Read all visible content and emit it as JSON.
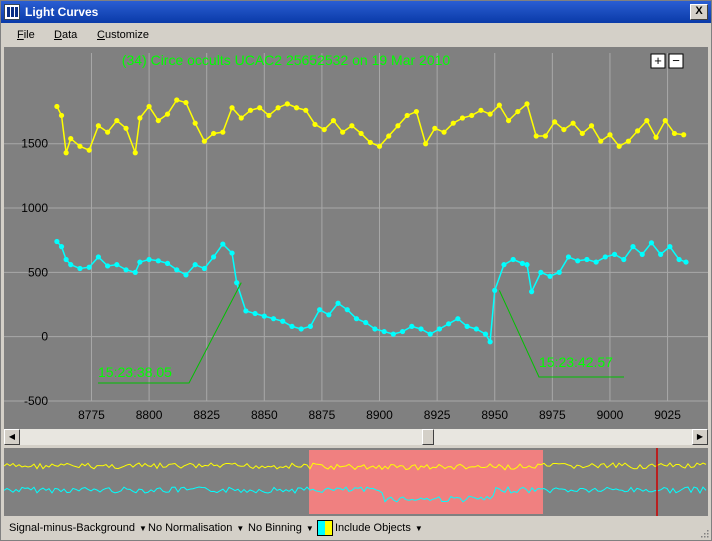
{
  "window": {
    "title": "Light Curves",
    "close_label": "X"
  },
  "menu": {
    "items": [
      {
        "mnemonic": "F",
        "rest": "ile"
      },
      {
        "mnemonic": "D",
        "rest": "ata"
      },
      {
        "mnemonic": "C",
        "rest": "ustomize"
      }
    ]
  },
  "chart": {
    "title": "(34) Circe occults UCAC2 25652532 on 19 Mar 2010",
    "zoom_in_label": "+",
    "zoom_out_label": "−",
    "annotations": [
      {
        "text": "15:23:38.05",
        "frame": 8840
      },
      {
        "text": "15:23:42.57",
        "frame": 8952
      }
    ],
    "colors": {
      "background": "#808080",
      "grid": "#a8a8a8",
      "series1": "#ffff00",
      "series2": "#00ffff",
      "annotation": "#00ff00"
    }
  },
  "chart_data": {
    "type": "line",
    "x_ticks": [
      8775,
      8800,
      8825,
      8850,
      8875,
      8900,
      8925,
      8950,
      8975,
      9000,
      9025
    ],
    "y_ticks": [
      1500,
      1000,
      500,
      0,
      -500
    ],
    "xlim": [
      8757,
      9033
    ],
    "ylim": [
      -500,
      2050
    ],
    "grid": true,
    "series": [
      {
        "color": "#ffff00",
        "values": [
          [
            8760,
            1790
          ],
          [
            8762,
            1720
          ],
          [
            8764,
            1430
          ],
          [
            8766,
            1540
          ],
          [
            8770,
            1480
          ],
          [
            8774,
            1450
          ],
          [
            8778,
            1640
          ],
          [
            8782,
            1590
          ],
          [
            8786,
            1680
          ],
          [
            8790,
            1620
          ],
          [
            8794,
            1430
          ],
          [
            8796,
            1700
          ],
          [
            8800,
            1790
          ],
          [
            8804,
            1680
          ],
          [
            8808,
            1730
          ],
          [
            8812,
            1840
          ],
          [
            8816,
            1820
          ],
          [
            8820,
            1660
          ],
          [
            8824,
            1520
          ],
          [
            8828,
            1580
          ],
          [
            8832,
            1590
          ],
          [
            8836,
            1780
          ],
          [
            8840,
            1700
          ],
          [
            8844,
            1760
          ],
          [
            8848,
            1780
          ],
          [
            8852,
            1720
          ],
          [
            8856,
            1780
          ],
          [
            8860,
            1810
          ],
          [
            8864,
            1780
          ],
          [
            8868,
            1760
          ],
          [
            8872,
            1650
          ],
          [
            8876,
            1610
          ],
          [
            8880,
            1680
          ],
          [
            8884,
            1590
          ],
          [
            8888,
            1640
          ],
          [
            8892,
            1580
          ],
          [
            8896,
            1510
          ],
          [
            8900,
            1480
          ],
          [
            8904,
            1560
          ],
          [
            8908,
            1640
          ],
          [
            8912,
            1720
          ],
          [
            8916,
            1750
          ],
          [
            8920,
            1500
          ],
          [
            8924,
            1620
          ],
          [
            8928,
            1590
          ],
          [
            8932,
            1660
          ],
          [
            8936,
            1700
          ],
          [
            8940,
            1720
          ],
          [
            8944,
            1760
          ],
          [
            8948,
            1730
          ],
          [
            8952,
            1800
          ],
          [
            8956,
            1680
          ],
          [
            8960,
            1750
          ],
          [
            8964,
            1810
          ],
          [
            8968,
            1560
          ],
          [
            8972,
            1560
          ],
          [
            8976,
            1670
          ],
          [
            8980,
            1610
          ],
          [
            8984,
            1660
          ],
          [
            8988,
            1580
          ],
          [
            8992,
            1640
          ],
          [
            8996,
            1520
          ],
          [
            9000,
            1570
          ],
          [
            9004,
            1480
          ],
          [
            9008,
            1520
          ],
          [
            9012,
            1600
          ],
          [
            9016,
            1680
          ],
          [
            9020,
            1550
          ],
          [
            9024,
            1680
          ],
          [
            9028,
            1580
          ],
          [
            9032,
            1570
          ]
        ]
      },
      {
        "color": "#00ffff",
        "values": [
          [
            8760,
            740
          ],
          [
            8762,
            700
          ],
          [
            8764,
            600
          ],
          [
            8766,
            560
          ],
          [
            8770,
            530
          ],
          [
            8774,
            540
          ],
          [
            8778,
            620
          ],
          [
            8782,
            550
          ],
          [
            8786,
            560
          ],
          [
            8790,
            520
          ],
          [
            8794,
            500
          ],
          [
            8796,
            580
          ],
          [
            8800,
            600
          ],
          [
            8804,
            590
          ],
          [
            8808,
            570
          ],
          [
            8812,
            520
          ],
          [
            8816,
            480
          ],
          [
            8820,
            560
          ],
          [
            8824,
            530
          ],
          [
            8828,
            620
          ],
          [
            8832,
            720
          ],
          [
            8836,
            650
          ],
          [
            8838,
            420
          ],
          [
            8842,
            200
          ],
          [
            8846,
            180
          ],
          [
            8850,
            160
          ],
          [
            8854,
            140
          ],
          [
            8858,
            120
          ],
          [
            8862,
            80
          ],
          [
            8866,
            60
          ],
          [
            8870,
            80
          ],
          [
            8874,
            210
          ],
          [
            8878,
            170
          ],
          [
            8882,
            260
          ],
          [
            8886,
            210
          ],
          [
            8890,
            140
          ],
          [
            8894,
            110
          ],
          [
            8898,
            60
          ],
          [
            8902,
            40
          ],
          [
            8906,
            20
          ],
          [
            8910,
            40
          ],
          [
            8914,
            80
          ],
          [
            8918,
            60
          ],
          [
            8922,
            20
          ],
          [
            8926,
            60
          ],
          [
            8930,
            100
          ],
          [
            8934,
            140
          ],
          [
            8938,
            80
          ],
          [
            8942,
            60
          ],
          [
            8946,
            20
          ],
          [
            8948,
            -40
          ],
          [
            8950,
            360
          ],
          [
            8954,
            560
          ],
          [
            8958,
            600
          ],
          [
            8962,
            570
          ],
          [
            8964,
            560
          ],
          [
            8966,
            350
          ],
          [
            8970,
            500
          ],
          [
            8974,
            470
          ],
          [
            8978,
            500
          ],
          [
            8982,
            620
          ],
          [
            8986,
            590
          ],
          [
            8990,
            600
          ],
          [
            8994,
            580
          ],
          [
            8998,
            620
          ],
          [
            9002,
            640
          ],
          [
            9006,
            600
          ],
          [
            9010,
            700
          ],
          [
            9014,
            640
          ],
          [
            9018,
            730
          ],
          [
            9022,
            640
          ],
          [
            9026,
            700
          ],
          [
            9030,
            600
          ],
          [
            9033,
            580
          ]
        ]
      }
    ]
  },
  "scrollbar": {
    "left_arrow": "◀",
    "right_arrow": "▶"
  },
  "overview": {
    "colors": {
      "background": "#808080",
      "highlight": "#f08080",
      "marker": "#cc0000"
    }
  },
  "status": {
    "items": [
      {
        "label": "Signal-minus-Background",
        "arrow": "▼"
      },
      {
        "label": "No Normalisation",
        "arrow": "▼"
      },
      {
        "label": "No Binning",
        "arrow": "▼"
      },
      {
        "label": "Include Objects",
        "arrow": "▼"
      }
    ]
  }
}
